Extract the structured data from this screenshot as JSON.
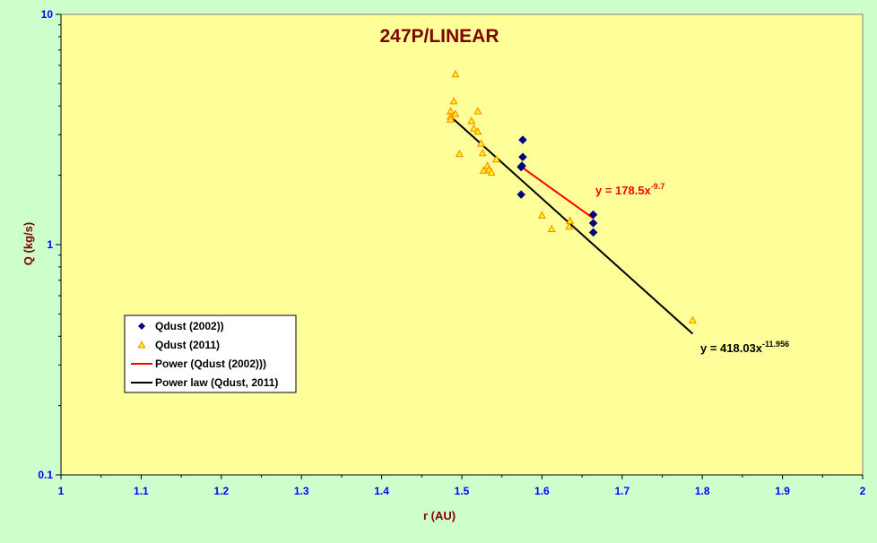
{
  "chart_data": {
    "type": "scatter",
    "title": "247P/LINEAR",
    "xlabel": "r (AU)",
    "ylabel": "Q (kg/s)",
    "xlim": [
      1,
      2
    ],
    "ylim": [
      0.1,
      10
    ],
    "yscale": "log",
    "x_ticks": [
      "1",
      "1.1",
      "1.2",
      "1.3",
      "1.4",
      "1.5",
      "1.6",
      "1.7",
      "1.8",
      "1.9",
      "2"
    ],
    "y_ticks": [
      "0.1",
      "1",
      "10"
    ],
    "grid": false,
    "legend_position": "bottom-left",
    "series": [
      {
        "name": "Qdust (2002))",
        "marker": "diamond",
        "color": "#000080",
        "points": [
          [
            1.576,
            2.85
          ],
          [
            1.576,
            2.4
          ],
          [
            1.575,
            2.2
          ],
          [
            1.574,
            2.17
          ],
          [
            1.574,
            1.65
          ],
          [
            1.664,
            1.35
          ],
          [
            1.664,
            1.24
          ],
          [
            1.664,
            1.13
          ]
        ]
      },
      {
        "name": "Qdust (2011)",
        "marker": "triangle",
        "color": "#ff8000",
        "points": [
          [
            1.492,
            5.5
          ],
          [
            1.49,
            4.2
          ],
          [
            1.486,
            3.8
          ],
          [
            1.492,
            3.7
          ],
          [
            1.486,
            3.6
          ],
          [
            1.486,
            3.5
          ],
          [
            1.52,
            3.8
          ],
          [
            1.512,
            3.45
          ],
          [
            1.515,
            3.2
          ],
          [
            1.52,
            3.1
          ],
          [
            1.524,
            2.75
          ],
          [
            1.526,
            2.5
          ],
          [
            1.497,
            2.48
          ],
          [
            1.543,
            2.35
          ],
          [
            1.532,
            2.2
          ],
          [
            1.534,
            2.12
          ],
          [
            1.527,
            2.1
          ],
          [
            1.537,
            2.06
          ],
          [
            1.6,
            1.34
          ],
          [
            1.612,
            1.17
          ],
          [
            1.635,
            1.27
          ],
          [
            1.634,
            1.2
          ],
          [
            1.788,
            0.47
          ]
        ]
      }
    ],
    "trendlines": [
      {
        "name": "Power (Qdust (2002)))",
        "color": "#ff0000",
        "x_range": [
          1.574,
          1.664
        ],
        "y_range": [
          2.18,
          1.3
        ],
        "equation": {
          "prefix": "y = 178.5x",
          "exponent": "-9.7"
        }
      },
      {
        "name": "Power law (Qdust, 2011)",
        "color": "#000000",
        "x_range": [
          1.486,
          1.788
        ],
        "y_range": [
          3.6,
          0.41
        ],
        "equation": {
          "prefix": "y = 418.03x",
          "exponent": "-11.956"
        }
      }
    ],
    "colors": {
      "page_background": "#ccffcc",
      "plot_background": "#ffff99",
      "title": "#800000",
      "axis_title": "#800000",
      "tick_label": "#0000ff",
      "trend_equation_1": "#ff0000",
      "trend_equation_2": "#000000"
    }
  }
}
